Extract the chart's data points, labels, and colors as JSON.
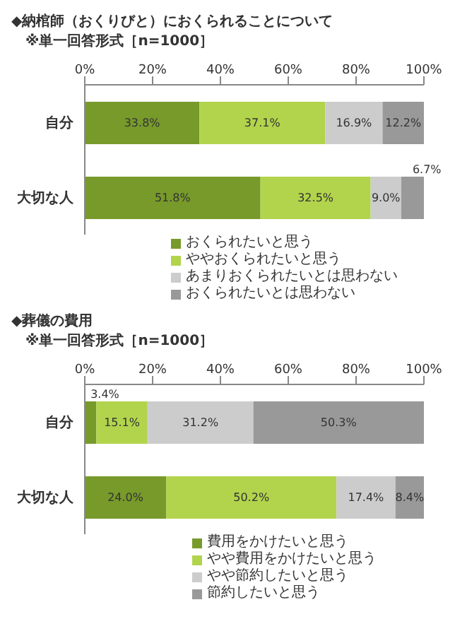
{
  "chart_data": [
    {
      "type": "bar",
      "orientation": "horizontal",
      "stacked": true,
      "title": "◆納棺師（おくりびと）におくられることについて",
      "subtitle": "※単一回答形式［n=1000］",
      "categories": [
        "自分",
        "大切な人"
      ],
      "xlim": [
        0,
        100
      ],
      "xticks": [
        {
          "value": 0,
          "label": "0%"
        },
        {
          "value": 20,
          "label": "20%"
        },
        {
          "value": 40,
          "label": "40%"
        },
        {
          "value": 60,
          "label": "60%"
        },
        {
          "value": 80,
          "label": "80%"
        },
        {
          "value": 100,
          "label": "100%"
        }
      ],
      "legend": "bottom",
      "series": [
        {
          "name": "おくられたいと思う",
          "color": "#779a2b",
          "values": [
            33.8,
            51.8
          ],
          "value_labels": [
            "33.8%",
            "51.8%"
          ]
        },
        {
          "name": "ややおくられたいと思う",
          "color": "#b2d44c",
          "values": [
            37.1,
            32.5
          ],
          "value_labels": [
            "37.1%",
            "32.5%"
          ]
        },
        {
          "name": "あまりおくられたいとは思わない",
          "color": "#cccccc",
          "values": [
            16.9,
            9.0
          ],
          "value_labels": [
            "16.9%",
            "9.0%"
          ]
        },
        {
          "name": "おくられたいとは思わない",
          "color": "#999999",
          "values": [
            12.2,
            6.7
          ],
          "value_labels": [
            "12.2%",
            "6.7%"
          ]
        }
      ]
    },
    {
      "type": "bar",
      "orientation": "horizontal",
      "stacked": true,
      "title": "◆葬儀の費用",
      "subtitle": "※単一回答形式［n=1000］",
      "categories": [
        "自分",
        "大切な人"
      ],
      "xlim": [
        0,
        100
      ],
      "xticks": [
        {
          "value": 0,
          "label": "0%"
        },
        {
          "value": 20,
          "label": "20%"
        },
        {
          "value": 40,
          "label": "40%"
        },
        {
          "value": 60,
          "label": "60%"
        },
        {
          "value": 80,
          "label": "80%"
        },
        {
          "value": 100,
          "label": "100%"
        }
      ],
      "legend": "bottom",
      "series": [
        {
          "name": "費用をかけたいと思う",
          "color": "#779a2b",
          "values": [
            3.4,
            24.0
          ],
          "value_labels": [
            "3.4%",
            "24.0%"
          ]
        },
        {
          "name": "やや費用をかけたいと思う",
          "color": "#b2d44c",
          "values": [
            15.1,
            50.2
          ],
          "value_labels": [
            "15.1%",
            "50.2%"
          ]
        },
        {
          "name": "やや節約したいと思う",
          "color": "#cccccc",
          "values": [
            31.2,
            17.4
          ],
          "value_labels": [
            "31.2%",
            "17.4%"
          ]
        },
        {
          "name": "節約したいと思う",
          "color": "#999999",
          "values": [
            50.3,
            8.4
          ],
          "value_labels": [
            "50.3%",
            "8.4%"
          ]
        }
      ]
    }
  ]
}
